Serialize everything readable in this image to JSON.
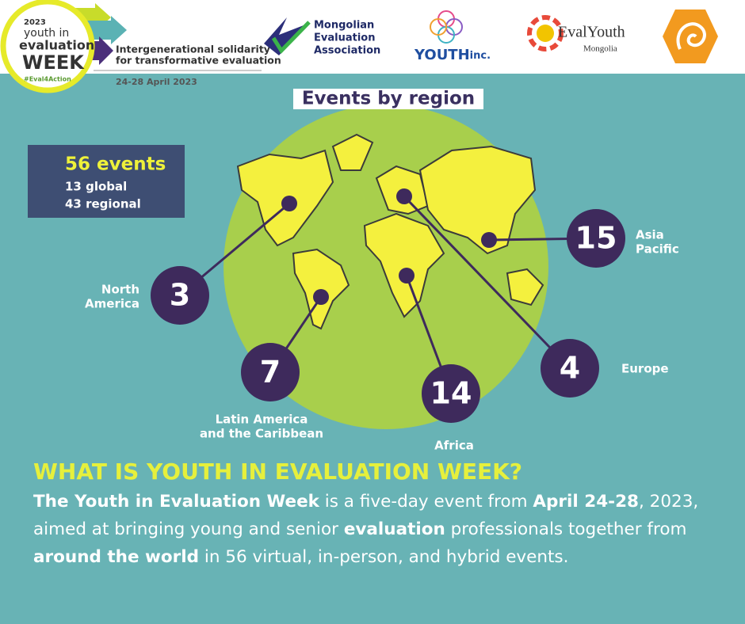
{
  "header": {
    "logo": {
      "year": "2023",
      "line1": "youth in",
      "line2": "evaluation",
      "line3": "WEEK",
      "hashtag": "#Eval4Action"
    },
    "tagline": [
      "Intergenerational solidarity",
      "for transformative evaluation"
    ],
    "dates": "24-28 April 2023",
    "partners": {
      "mea": [
        "Mongolian",
        "Evaluation",
        "Association"
      ],
      "youth_inc": {
        "name": "YOUTH",
        "suffix": "inc."
      },
      "evalyouth": {
        "name": "EvalYouth",
        "sub": "Mongolia"
      }
    }
  },
  "map": {
    "title": "Events by region",
    "summary": {
      "total": "56 events",
      "global": "13 global",
      "regional": "43 regional"
    },
    "regions": [
      {
        "count": 3,
        "name": [
          "North",
          "America"
        ]
      },
      {
        "count": 7,
        "name": [
          "Latin America",
          "and the Caribbean"
        ]
      },
      {
        "count": 14,
        "name": [
          "Africa"
        ]
      },
      {
        "count": 4,
        "name": [
          "Europe"
        ]
      },
      {
        "count": 15,
        "name": [
          "Asia",
          "Pacific"
        ]
      }
    ]
  },
  "intro": {
    "heading": "WHAT IS YOUTH IN EVALUATION WEEK?",
    "body": [
      {
        "text": "The Youth in Evaluation Week",
        "bold": true
      },
      {
        "text": " is a five-day event from ",
        "bold": false
      },
      {
        "text": "April 24-28",
        "bold": true
      },
      {
        "text": ", 2023, aimed at bringing young and senior ",
        "bold": false
      },
      {
        "text": "evaluation",
        "bold": true
      },
      {
        "text": " professionals together from ",
        "bold": false
      },
      {
        "text": "around the world",
        "bold": true
      },
      {
        "text": " in 56 virtual, in-person, and hybrid events.",
        "bold": false
      }
    ]
  }
}
